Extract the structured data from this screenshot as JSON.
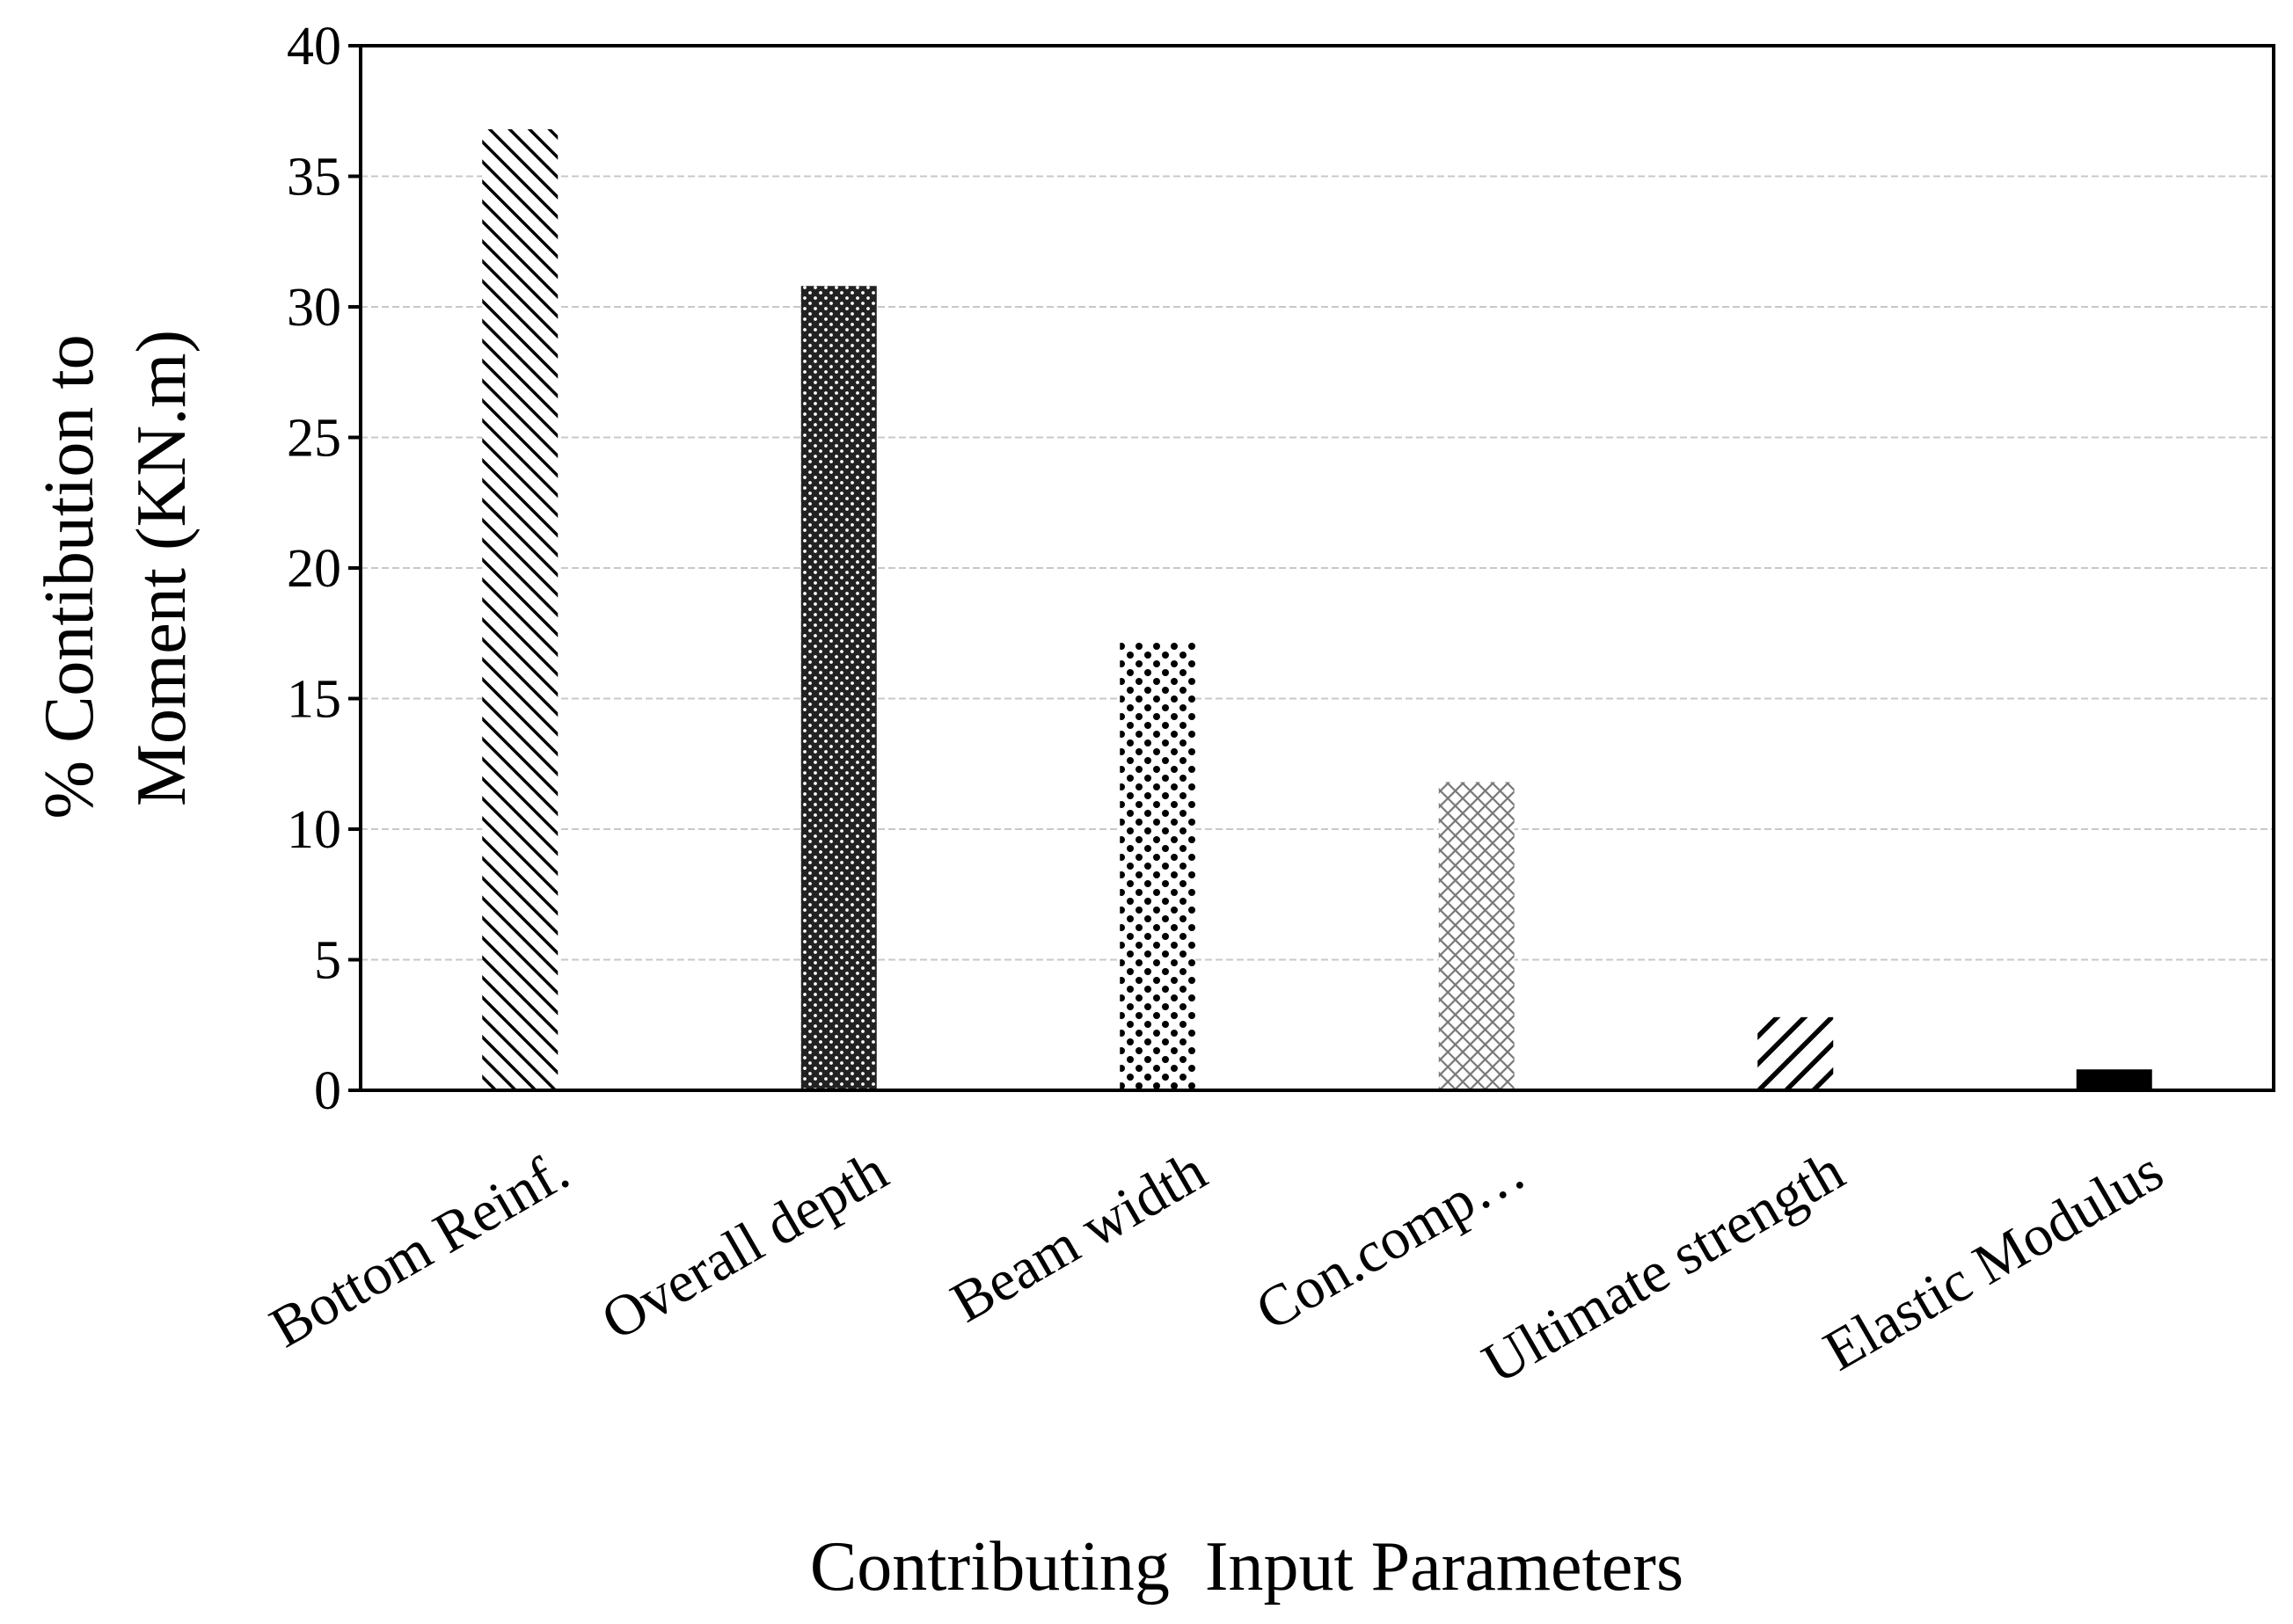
{
  "chart_data": {
    "type": "bar",
    "categories": [
      "Bottom Reinf.",
      "Overall depth",
      "Beam width",
      "Con.comp…",
      "Ultimate strength",
      "Elastic Modulus"
    ],
    "values": [
      36.8,
      30.8,
      17.2,
      11.8,
      2.8,
      0.8
    ],
    "ylabel_lines": [
      "% Contibution to",
      "Moment (KN.m)"
    ],
    "xlabel": "Contributing  Input Parameters",
    "ylim": [
      0,
      40
    ],
    "yticks": [
      0,
      5,
      10,
      15,
      20,
      25,
      30,
      35,
      40
    ],
    "grid": true,
    "bar_patterns": [
      "diagonal-dense",
      "dense-dots",
      "dots",
      "crosshatch",
      "diagonal",
      "solid"
    ]
  }
}
